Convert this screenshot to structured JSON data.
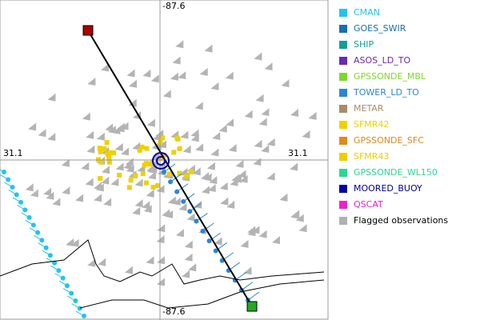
{
  "map": {
    "axis_labels": {
      "top": "-87.6",
      "bottom": "-87.6",
      "left": "31.1",
      "right": "31.1"
    }
  },
  "legend": {
    "items": [
      {
        "label": "CMAN",
        "color": "#22c4f0",
        "text_color": "#22c4f0"
      },
      {
        "label": "GOES_SWIR",
        "color": "#1a6fb0",
        "text_color": "#1a6fb0"
      },
      {
        "label": "SHIP",
        "color": "#119e96",
        "text_color": "#119e96"
      },
      {
        "label": "ASOS_LD_TO",
        "color": "#6a2ab0",
        "text_color": "#6a2ab0"
      },
      {
        "label": "GPSSONDE_MBL",
        "color": "#7fd82a",
        "text_color": "#7fd82a"
      },
      {
        "label": "TOWER_LD_TO",
        "color": "#2a86d8",
        "text_color": "#2a86d8"
      },
      {
        "label": "METAR",
        "color": "#a88c68",
        "text_color": "#a88c68"
      },
      {
        "label": "SFMR42",
        "color": "#f0d000",
        "text_color": "#f0d000"
      },
      {
        "label": "GPSSONDE_SFC",
        "color": "#e08a20",
        "text_color": "#e08a20"
      },
      {
        "label": "SFMR43",
        "color": "#f0cc00",
        "text_color": "#f0cc00"
      },
      {
        "label": "GPSSONDE_WL150",
        "color": "#2ad890",
        "text_color": "#2ad890"
      },
      {
        "label": "MOORED_BUOY",
        "color": "#0000a0",
        "text_color": "#0000a0"
      },
      {
        "label": "QSCAT",
        "color": "#f020d0",
        "text_color": "#f020d0"
      },
      {
        "label": "Flagged observations",
        "color": "#b0b0b0",
        "text_color": "#000000"
      }
    ]
  }
}
